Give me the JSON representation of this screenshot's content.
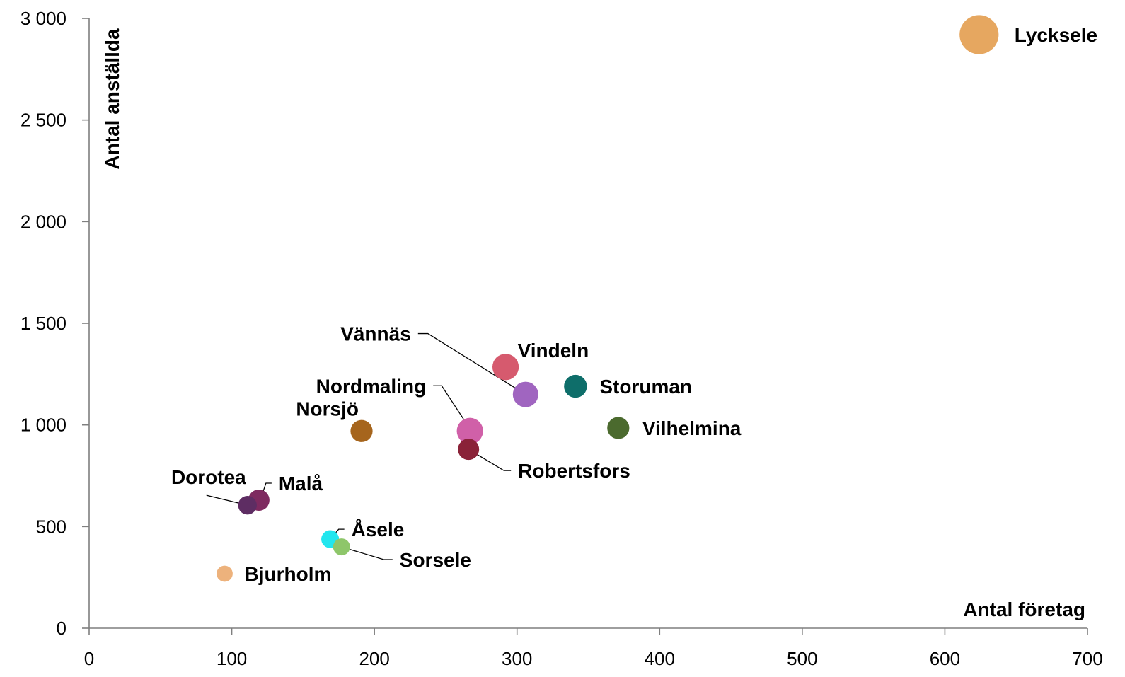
{
  "chart_data": {
    "type": "scatter",
    "xlabel": "Antal företag",
    "ylabel": "Antal anställda",
    "xlim": [
      0,
      700
    ],
    "ylim": [
      0,
      3000
    ],
    "x_ticks": [
      0,
      100,
      200,
      300,
      400,
      500,
      600,
      700
    ],
    "x_tick_labels": [
      "0",
      "100",
      "200",
      "300",
      "400",
      "500",
      "600",
      "700"
    ],
    "y_ticks": [
      0,
      500,
      1000,
      1500,
      2000,
      2500,
      3000
    ],
    "y_tick_labels": [
      "0",
      "500",
      "1 000",
      "1 500",
      "2 000",
      "2 500",
      "3 000"
    ],
    "grid": false,
    "bubble_size_encoding": true,
    "points": [
      {
        "label": "Lycksele",
        "x": 624,
        "y": 2920,
        "size": 3.6,
        "color": "#E6A760"
      },
      {
        "label": "Vindeln",
        "x": 292,
        "y": 1285,
        "size": 2.1,
        "color": "#D65A6E"
      },
      {
        "label": "Vännäs",
        "x": 306,
        "y": 1150,
        "size": 2.0,
        "color": "#A065C0"
      },
      {
        "label": "Storuman",
        "x": 341,
        "y": 1190,
        "size": 1.7,
        "color": "#0E6E6A"
      },
      {
        "label": "Vilhelmina",
        "x": 371,
        "y": 985,
        "size": 1.6,
        "color": "#4B6A2E"
      },
      {
        "label": "Nordmaling",
        "x": 267,
        "y": 970,
        "size": 2.1,
        "color": "#D060A8"
      },
      {
        "label": "Norsjö",
        "x": 191,
        "y": 970,
        "size": 1.6,
        "color": "#A6651D"
      },
      {
        "label": "Robertsfors",
        "x": 266,
        "y": 880,
        "size": 1.5,
        "color": "#8A2238"
      },
      {
        "label": "Malå",
        "x": 119,
        "y": 630,
        "size": 1.5,
        "color": "#7E2A60"
      },
      {
        "label": "Dorotea",
        "x": 111,
        "y": 605,
        "size": 1.2,
        "color": "#5E2D63"
      },
      {
        "label": "Åsele",
        "x": 169,
        "y": 438,
        "size": 1.1,
        "color": "#22E6EE"
      },
      {
        "label": "Sorsele",
        "x": 177,
        "y": 400,
        "size": 1.0,
        "color": "#8EC66A"
      },
      {
        "label": "Bjurholm",
        "x": 95,
        "y": 268,
        "size": 0.9,
        "color": "#EDB27C"
      }
    ]
  }
}
